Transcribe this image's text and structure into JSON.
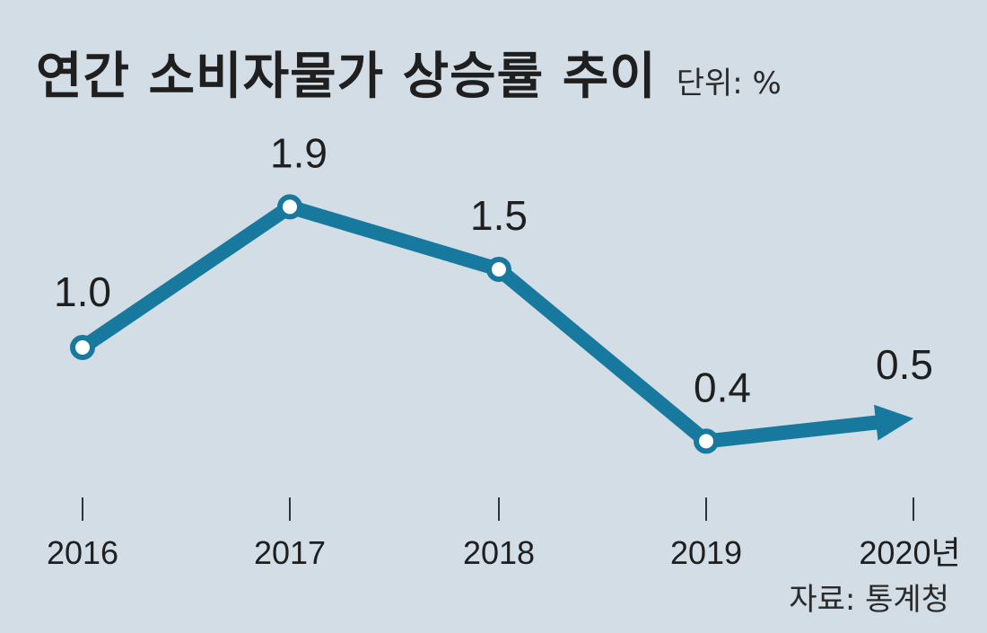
{
  "title": "연간 소비자물가 상승률 추이",
  "unit_label": "단위: %",
  "source": "자료: 통계청",
  "colors": {
    "background": "#d3dde5",
    "line": "#17799d",
    "text": "#1f1f1f"
  },
  "chart_data": {
    "type": "line",
    "title": "연간 소비자물가 상승률 추이",
    "unit": "%",
    "categories": [
      "2016",
      "2017",
      "2018",
      "2019",
      "2020년"
    ],
    "values": [
      1.0,
      1.9,
      1.5,
      0.4,
      0.5
    ],
    "labels": [
      "1.0",
      "1.9",
      "1.5",
      "0.4",
      "0.5"
    ],
    "last_point_style": "arrow",
    "ylim": [
      0,
      2.5
    ],
    "grid": false
  }
}
